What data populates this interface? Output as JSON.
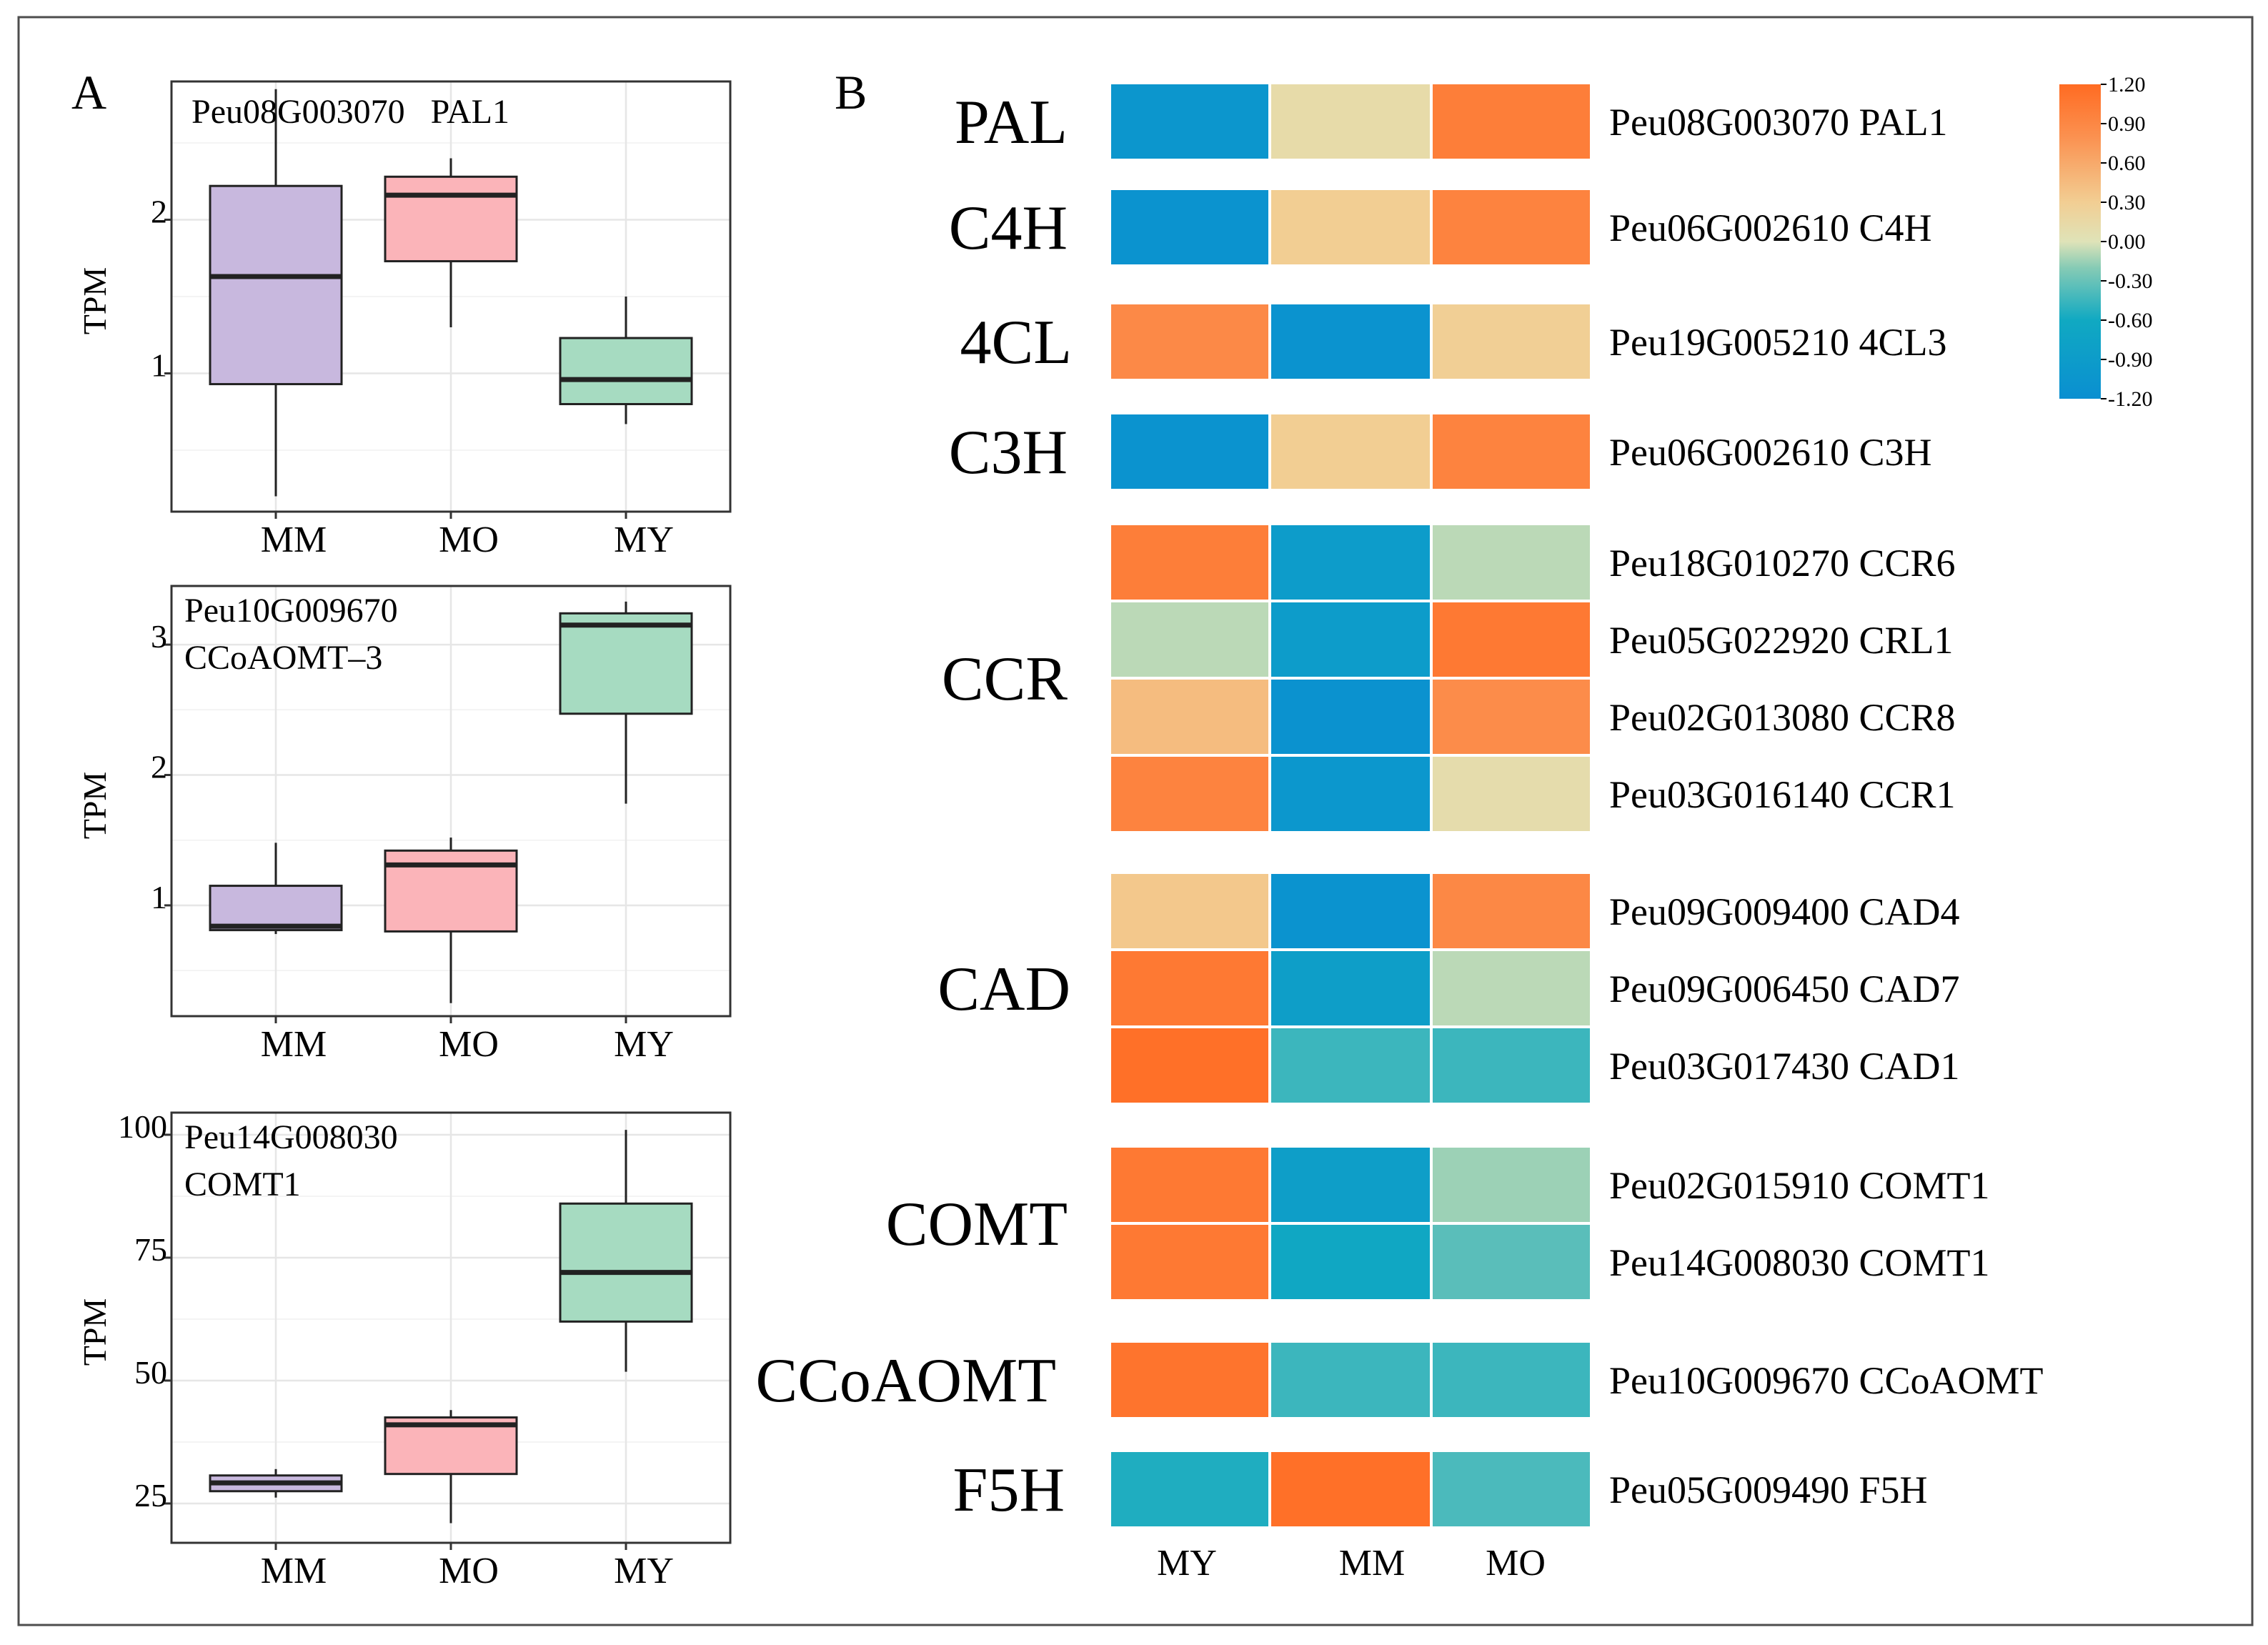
{
  "figure": {
    "panel_a_label": "A",
    "panel_b_label": "B",
    "border_color": "#4d4d4d"
  },
  "chart_data": [
    {
      "type": "box",
      "panel": "A",
      "title": "Peu08G003070   PAL1",
      "title_lines": [
        "Peu08G003070   PAL1"
      ],
      "ylabel": "TPM",
      "categories": [
        "MM",
        "MO",
        "MY"
      ],
      "ylim": [
        0.1,
        2.9
      ],
      "yticks": [
        1,
        2
      ],
      "boxes": [
        {
          "category": "MM",
          "min": 0.2,
          "q1": 0.93,
          "median": 1.63,
          "q3": 2.22,
          "max": 2.85,
          "color": "#c8b8de"
        },
        {
          "category": "MO",
          "min": 1.3,
          "q1": 1.73,
          "median": 2.16,
          "q3": 2.28,
          "max": 2.4,
          "color": "#fbb4b9"
        },
        {
          "category": "MY",
          "min": 0.67,
          "q1": 0.8,
          "median": 0.96,
          "q3": 1.23,
          "max": 1.5,
          "color": "#a6dbc1"
        }
      ]
    },
    {
      "type": "box",
      "panel": "A",
      "title": "Peu10G009670 CCoAOMT–3",
      "title_lines": [
        "Peu10G009670",
        "CCoAOMT–3"
      ],
      "ylabel": "TPM",
      "categories": [
        "MM",
        "MO",
        "MY"
      ],
      "ylim": [
        0.15,
        3.45
      ],
      "yticks": [
        1,
        2,
        3
      ],
      "boxes": [
        {
          "category": "MM",
          "min": 0.78,
          "q1": 0.81,
          "median": 0.84,
          "q3": 1.15,
          "max": 1.48,
          "color": "#c8b8de"
        },
        {
          "category": "MO",
          "min": 0.25,
          "q1": 0.8,
          "median": 1.31,
          "q3": 1.42,
          "max": 1.52,
          "color": "#fbb4b9"
        },
        {
          "category": "MY",
          "min": 1.78,
          "q1": 2.47,
          "median": 3.15,
          "q3": 3.24,
          "max": 3.33,
          "color": "#a6dbc1"
        }
      ]
    },
    {
      "type": "box",
      "panel": "A",
      "title": "Peu14G008030 COMT1",
      "title_lines": [
        "Peu14G008030",
        "COMT1"
      ],
      "ylabel": "TPM",
      "categories": [
        "MM",
        "MO",
        "MY"
      ],
      "ylim": [
        17,
        104.5
      ],
      "yticks": [
        25,
        50,
        75,
        100
      ],
      "ytick_labels": [
        "25",
        "50",
        "75",
        "100"
      ],
      "boxes": [
        {
          "category": "MM",
          "min": 26.2,
          "q1": 27.5,
          "median": 29.2,
          "q3": 30.7,
          "max": 32.0,
          "color": "#c8b8de"
        },
        {
          "category": "MO",
          "min": 21.0,
          "q1": 31.0,
          "median": 41.0,
          "q3": 42.5,
          "max": 44.0,
          "color": "#fbb4b9"
        },
        {
          "category": "MY",
          "min": 51.8,
          "q1": 62.0,
          "median": 72.0,
          "q3": 86.0,
          "max": 101.0,
          "color": "#a6dbc1"
        }
      ]
    },
    {
      "type": "heatmap",
      "panel": "B",
      "columns": [
        "MY",
        "MM",
        "MO"
      ],
      "colorbar": {
        "min": -1.2,
        "max": 1.2,
        "ticks": [
          "1.20",
          "0.90",
          "0.60",
          "0.30",
          "0.00",
          "-0.30",
          "-0.60",
          "-0.90",
          "-1.20"
        ],
        "stops": [
          {
            "v": -1.2,
            "c": "#0a8fd1"
          },
          {
            "v": -0.6,
            "c": "#10a9c2"
          },
          {
            "v": -0.2,
            "c": "#86cbb5"
          },
          {
            "v": 0.0,
            "c": "#dfe3b8"
          },
          {
            "v": 0.3,
            "c": "#f2ce93"
          },
          {
            "v": 0.8,
            "c": "#fb9150"
          },
          {
            "v": 1.2,
            "c": "#ff6b22"
          }
        ]
      },
      "groups": [
        {
          "name": "PAL",
          "rows": [
            {
              "label": "Peu08G003070 PAL1",
              "values": [
                -1.05,
                0.12,
                1.0
              ]
            }
          ]
        },
        {
          "name": "C4H",
          "rows": [
            {
              "label": "Peu06G002610 C4H",
              "values": [
                -1.1,
                0.3,
                0.95
              ]
            }
          ]
        },
        {
          "name": "4CL",
          "rows": [
            {
              "label": "Peu19G005210 4CL3",
              "values": [
                0.88,
                -1.1,
                0.28
              ]
            }
          ]
        },
        {
          "name": "C3H",
          "rows": [
            {
              "label": "Peu06G002610 C3H",
              "values": [
                -1.1,
                0.3,
                0.95
              ]
            }
          ]
        },
        {
          "name": "CCR",
          "rows": [
            {
              "label": "Peu18G010270 CCR6",
              "values": [
                1.0,
                -0.9,
                -0.08
              ]
            },
            {
              "label": "Peu05G022920 CRL1",
              "values": [
                -0.08,
                -0.9,
                1.05
              ]
            },
            {
              "label": "Peu02G013080 CCR8",
              "values": [
                0.45,
                -1.12,
                0.85
              ]
            },
            {
              "label": "Peu03G016140 CCR1",
              "values": [
                0.95,
                -1.02,
                0.1
              ]
            }
          ]
        },
        {
          "name": "CAD",
          "rows": [
            {
              "label": "Peu09G009400 CAD4",
              "values": [
                0.35,
                -1.1,
                0.9
              ]
            },
            {
              "label": "Peu09G006450 CAD7",
              "values": [
                1.05,
                -0.85,
                -0.08
              ]
            },
            {
              "label": "Peu03G017430 CAD1",
              "values": [
                1.15,
                -0.45,
                -0.45
              ]
            }
          ]
        },
        {
          "name": "COMT",
          "rows": [
            {
              "label": "Peu02G015910 COMT1",
              "values": [
                1.05,
                -0.85,
                -0.15
              ]
            },
            {
              "label": "Peu14G008030 COMT1",
              "values": [
                1.05,
                -0.65,
                -0.35
              ]
            }
          ]
        },
        {
          "name": "CCoAOMT",
          "rows": [
            {
              "label": "Peu10G009670 CCoAOMT",
              "values": [
                1.1,
                -0.45,
                -0.45
              ]
            }
          ]
        },
        {
          "name": "F5H",
          "rows": [
            {
              "label": "Peu05G009490 F5H",
              "values": [
                -0.55,
                1.15,
                -0.4
              ]
            }
          ]
        }
      ]
    }
  ]
}
